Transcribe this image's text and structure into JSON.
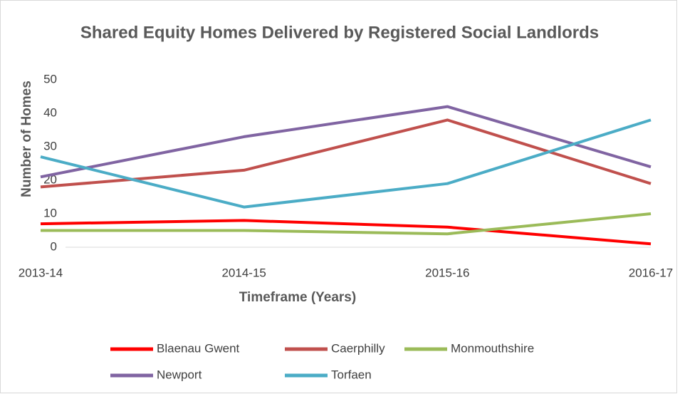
{
  "chart_data": {
    "type": "line",
    "title": "Shared Equity Homes Delivered by Registered Social Landlords",
    "x_label": "Timeframe (Years)",
    "y_label": "Number of Homes",
    "categories": [
      "2013-14",
      "2014-15",
      "2015-16",
      "2016-17"
    ],
    "series": [
      {
        "name": "Blaenau Gwent",
        "color": "#ff0000",
        "values": [
          7,
          8,
          6,
          1
        ]
      },
      {
        "name": "Caerphilly",
        "color": "#c0504d",
        "values": [
          18,
          23,
          38,
          19
        ]
      },
      {
        "name": "Monmouthshire",
        "color": "#9bbb59",
        "values": [
          5,
          5,
          4,
          10
        ]
      },
      {
        "name": "Newport",
        "color": "#8064a2",
        "values": [
          21,
          33,
          42,
          24
        ]
      },
      {
        "name": "Torfaen",
        "color": "#4bacc6",
        "values": [
          27,
          12,
          19,
          38
        ]
      }
    ],
    "ylim": [
      0,
      50
    ],
    "yticks": [
      0,
      10,
      20,
      30,
      40,
      50
    ],
    "grid": false
  }
}
